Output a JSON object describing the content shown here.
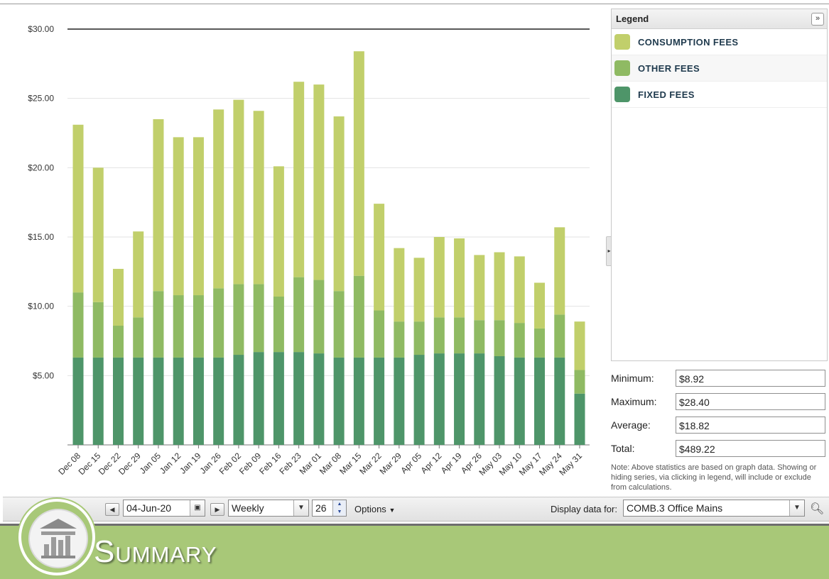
{
  "chart_data": {
    "type": "bar",
    "stacked": true,
    "categories": [
      "Dec 08",
      "Dec 15",
      "Dec 22",
      "Dec 29",
      "Jan 05",
      "Jan 12",
      "Jan 19",
      "Jan 26",
      "Feb 02",
      "Feb 09",
      "Feb 16",
      "Feb 23",
      "Mar 01",
      "Mar 08",
      "Mar 15",
      "Mar 22",
      "Mar 29",
      "Apr 05",
      "Apr 12",
      "Apr 19",
      "Apr 26",
      "May 03",
      "May 10",
      "May 17",
      "May 24",
      "May 31"
    ],
    "series": [
      {
        "name": "FIXED FEES",
        "color": "#4e9569",
        "values": [
          6.3,
          6.3,
          6.3,
          6.3,
          6.3,
          6.3,
          6.3,
          6.3,
          6.5,
          6.7,
          6.7,
          6.7,
          6.6,
          6.3,
          6.3,
          6.3,
          6.3,
          6.5,
          6.6,
          6.6,
          6.6,
          6.4,
          6.3,
          6.3,
          6.3,
          3.7
        ]
      },
      {
        "name": "OTHER FEES",
        "color": "#8fba63",
        "values": [
          4.7,
          4.0,
          2.3,
          2.9,
          4.8,
          4.5,
          4.5,
          5.0,
          5.1,
          4.9,
          4.0,
          5.4,
          5.3,
          4.8,
          5.9,
          3.4,
          2.6,
          2.4,
          2.6,
          2.6,
          2.4,
          2.6,
          2.5,
          2.1,
          3.1,
          1.7
        ]
      },
      {
        "name": "CONSUMPTION FEES",
        "color": "#c1cf6b",
        "values": [
          12.1,
          9.7,
          4.1,
          6.2,
          12.4,
          11.4,
          11.4,
          12.9,
          13.3,
          12.5,
          9.4,
          14.1,
          14.1,
          12.6,
          16.2,
          7.7,
          5.3,
          4.6,
          5.8,
          5.7,
          4.7,
          4.9,
          4.8,
          3.3,
          6.3,
          3.5
        ]
      }
    ],
    "ylim": [
      0,
      30
    ],
    "yticks": [
      "$5.00",
      "$10.00",
      "$15.00",
      "$20.00",
      "$25.00",
      "$30.00"
    ],
    "ytick_values": [
      5,
      10,
      15,
      20,
      25,
      30
    ],
    "grid": true,
    "legend_position": "right"
  },
  "legend": {
    "title": "Legend",
    "collapse_icon": "»",
    "items": [
      {
        "label": "CONSUMPTION FEES",
        "color": "#c1cf6b"
      },
      {
        "label": "OTHER FEES",
        "color": "#8fba63"
      },
      {
        "label": "FIXED FEES",
        "color": "#4e9569"
      }
    ]
  },
  "stats": {
    "min_label": "Minimum:",
    "min_value": "$8.92",
    "max_label": "Maximum:",
    "max_value": "$28.40",
    "avg_label": "Average:",
    "avg_value": "$18.82",
    "total_label": "Total:",
    "total_value": "$489.22",
    "note": "Note: Above statistics are based on graph data. Showing or hiding series, via clicking in legend, will include or exclude from calculations."
  },
  "toolbar": {
    "date_value": "04-Jun-20",
    "period_value": "Weekly",
    "count_value": "26",
    "options_label": "Options",
    "display_label": "Display data for:",
    "display_value": "COMB.3 Office Mains"
  },
  "banner": {
    "title": "Summary"
  }
}
